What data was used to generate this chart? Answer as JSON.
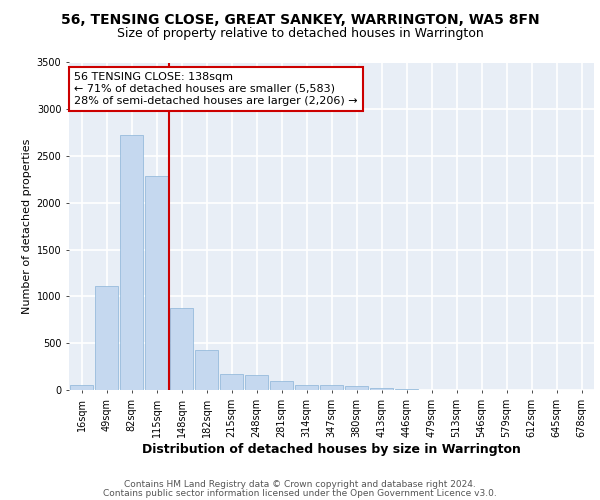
{
  "title_line1": "56, TENSING CLOSE, GREAT SANKEY, WARRINGTON, WA5 8FN",
  "title_line2": "Size of property relative to detached houses in Warrington",
  "xlabel": "Distribution of detached houses by size in Warrington",
  "ylabel": "Number of detached properties",
  "categories": [
    "16sqm",
    "49sqm",
    "82sqm",
    "115sqm",
    "148sqm",
    "182sqm",
    "215sqm",
    "248sqm",
    "281sqm",
    "314sqm",
    "347sqm",
    "380sqm",
    "413sqm",
    "446sqm",
    "479sqm",
    "513sqm",
    "546sqm",
    "579sqm",
    "612sqm",
    "645sqm",
    "678sqm"
  ],
  "values": [
    50,
    1110,
    2730,
    2290,
    880,
    430,
    170,
    165,
    95,
    55,
    50,
    40,
    25,
    15,
    0,
    0,
    0,
    0,
    0,
    0,
    0
  ],
  "bar_color": "#c5d8ef",
  "bar_edgecolor": "#8ab4d8",
  "vline_color": "#cc0000",
  "vline_index": 4,
  "annotation_text": "56 TENSING CLOSE: 138sqm\n← 71% of detached houses are smaller (5,583)\n28% of semi-detached houses are larger (2,206) →",
  "annotation_box_edgecolor": "#cc0000",
  "ylim": [
    0,
    3500
  ],
  "yticks": [
    0,
    500,
    1000,
    1500,
    2000,
    2500,
    3000,
    3500
  ],
  "background_color": "#e8eef6",
  "grid_color": "#ffffff",
  "footer_line1": "Contains HM Land Registry data © Crown copyright and database right 2024.",
  "footer_line2": "Contains public sector information licensed under the Open Government Licence v3.0.",
  "title_fontsize": 10,
  "subtitle_fontsize": 9,
  "ylabel_fontsize": 8,
  "xlabel_fontsize": 9,
  "tick_fontsize": 7,
  "annotation_fontsize": 8,
  "footer_fontsize": 6.5
}
